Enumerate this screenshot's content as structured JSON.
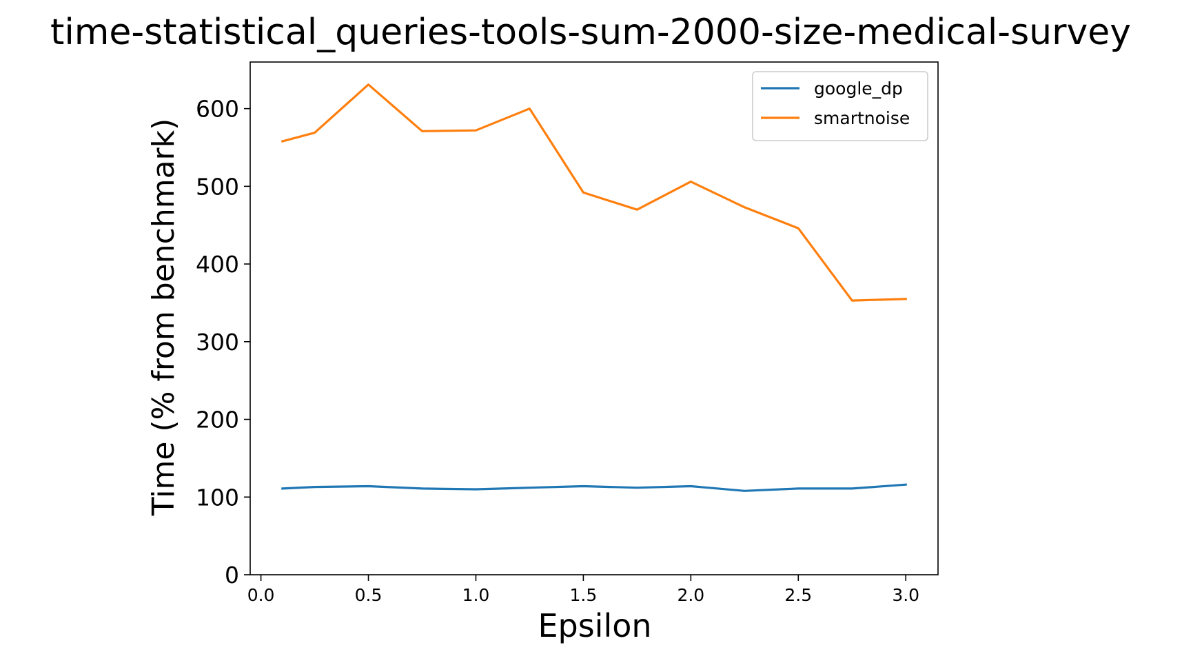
{
  "chart_data": {
    "type": "line",
    "title": "time-statistical_queries-tools-sum-2000-size-medical-survey",
    "xlabel": "Epsilon",
    "ylabel": "Time (% from benchmark)",
    "x": [
      0.1,
      0.25,
      0.5,
      0.75,
      1.0,
      1.25,
      1.5,
      1.75,
      2.0,
      2.25,
      2.5,
      2.75,
      3.0
    ],
    "xlim": [
      -0.05,
      3.15
    ],
    "ylim": [
      0,
      660
    ],
    "xticks": [
      0.0,
      0.5,
      1.0,
      1.5,
      2.0,
      2.5,
      3.0
    ],
    "xtick_labels": [
      "0.0",
      "0.5",
      "1.0",
      "1.5",
      "2.0",
      "2.5",
      "3.0"
    ],
    "yticks": [
      0,
      100,
      200,
      300,
      400,
      500,
      600
    ],
    "ytick_labels": [
      "0",
      "100",
      "200",
      "300",
      "400",
      "500",
      "600"
    ],
    "grid": false,
    "legend_position": "top-right",
    "series": [
      {
        "name": "google_dp",
        "color": "#1f77b4",
        "values": [
          111,
          113,
          114,
          111,
          110,
          112,
          114,
          112,
          114,
          108,
          111,
          111,
          116
        ]
      },
      {
        "name": "smartnoise",
        "color": "#ff7f0e",
        "values": [
          558,
          569,
          631,
          571,
          572,
          600,
          492,
          470,
          506,
          473,
          446,
          353,
          355
        ]
      }
    ]
  }
}
